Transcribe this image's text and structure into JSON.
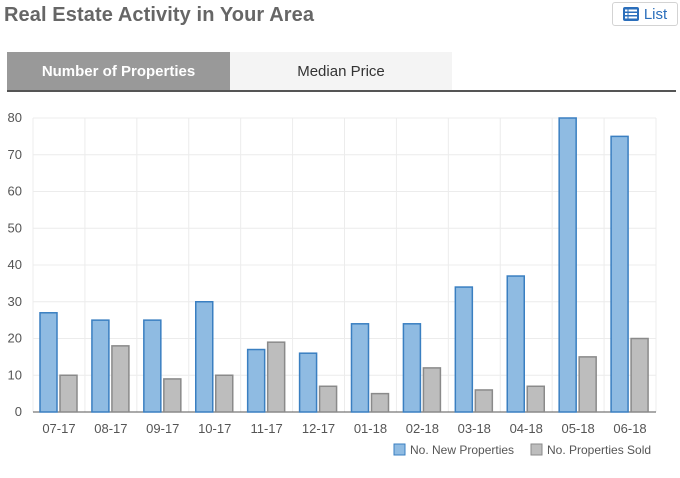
{
  "header": {
    "title": "Real Estate Activity in Your Area",
    "list_button_label": "List",
    "list_icon": "list-icon"
  },
  "tabs": [
    {
      "label": "Number of Properties",
      "active": true
    },
    {
      "label": "Median Price",
      "active": false
    }
  ],
  "colors": {
    "new_fill": "#8fbbe2",
    "new_stroke": "#3a7fc1",
    "sold_fill": "#bdbdbd",
    "sold_stroke": "#8a8a8a",
    "tab_active": "#999999"
  },
  "chart_data": {
    "type": "bar",
    "categories": [
      "07-17",
      "08-17",
      "09-17",
      "10-17",
      "11-17",
      "12-17",
      "01-18",
      "02-18",
      "03-18",
      "04-18",
      "05-18",
      "06-18"
    ],
    "series": [
      {
        "name": "No. New Properties",
        "values": [
          27,
          25,
          25,
          30,
          17,
          16,
          24,
          24,
          34,
          37,
          80,
          75
        ]
      },
      {
        "name": "No. Properties Sold",
        "values": [
          10,
          18,
          9,
          10,
          19,
          7,
          5,
          12,
          6,
          7,
          15,
          20
        ]
      }
    ],
    "y_ticks": [
      "0",
      "10",
      "20",
      "30",
      "40",
      "50",
      "60",
      "70",
      "80"
    ],
    "ylim": [
      0,
      80
    ],
    "grid": true,
    "legend_position": "bottom-right"
  }
}
